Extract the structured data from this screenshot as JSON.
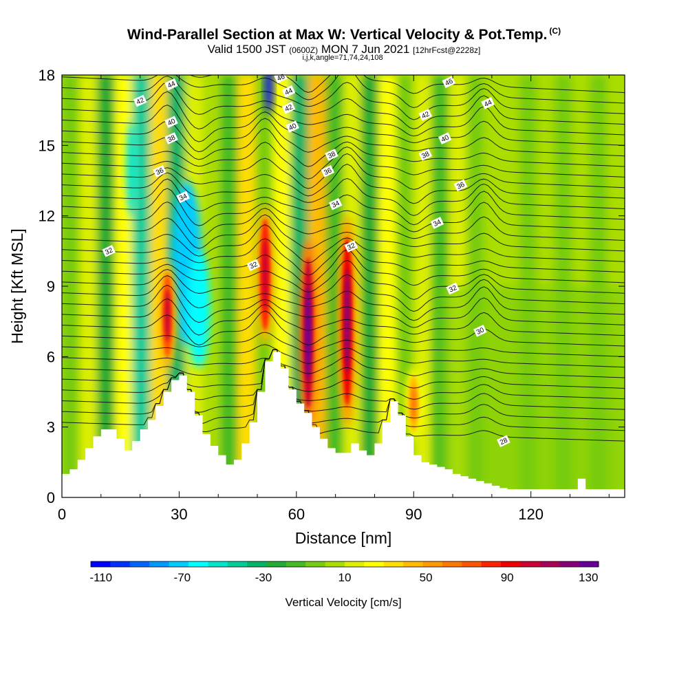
{
  "header": {
    "title": "Wind-Parallel Section at Max W: Vertical Velocity & Pot.Temp.",
    "copyright": "(C)",
    "valid_prefix": "Valid 1500 JST",
    "valid_utc": "(0600Z)",
    "valid_date": "MON 7 Jun 2021",
    "forecast": "[12hrFcst@2228z]",
    "indices": "i,j,k,angle=71,74,24,108"
  },
  "chart_data": {
    "type": "heatmap",
    "xlabel": "Distance [nm]",
    "ylabel": "Height [Kft MSL]",
    "xlim": [
      0,
      144
    ],
    "ylim": [
      0,
      18
    ],
    "xticks": [
      0,
      30,
      60,
      90,
      120
    ],
    "yticks": [
      0,
      3,
      6,
      9,
      12,
      15,
      18
    ],
    "colorbar": {
      "label": "Vertical Velocity [cm/s]",
      "range": [
        -115,
        135
      ],
      "tick_values": [
        -110,
        -70,
        -30,
        10,
        50,
        90,
        130
      ],
      "colors": [
        "#0000ff",
        "#0033ff",
        "#0066ff",
        "#0099ff",
        "#00ccff",
        "#00ffff",
        "#00e5cc",
        "#00cc99",
        "#00b366",
        "#22aa33",
        "#44bb22",
        "#77cc11",
        "#aadd00",
        "#ddee00",
        "#ffff00",
        "#ffdd00",
        "#ffbb00",
        "#ff9900",
        "#ff7700",
        "#ff5500",
        "#ff2200",
        "#ee0000",
        "#cc0033",
        "#aa0055",
        "#880077",
        "#660099"
      ]
    },
    "terrain_profile": {
      "x": [
        0,
        2,
        4,
        6,
        8,
        10,
        12,
        14,
        16,
        18,
        20,
        22,
        24,
        26,
        28,
        30,
        32,
        34,
        36,
        38,
        40,
        42,
        44,
        46,
        48,
        50,
        52,
        54,
        56,
        58,
        60,
        62,
        64,
        66,
        68,
        70,
        72,
        74,
        76,
        78,
        80,
        82,
        84,
        86,
        88,
        90,
        92,
        94,
        96,
        98,
        100,
        102,
        104,
        106,
        108,
        110,
        112,
        114,
        116,
        118,
        120,
        122,
        124,
        126,
        128,
        130,
        132,
        134,
        136,
        138,
        140,
        142,
        144
      ],
      "height": [
        1.0,
        1.2,
        1.6,
        2.1,
        2.6,
        2.9,
        2.9,
        2.5,
        2.0,
        2.4,
        2.9,
        3.3,
        3.9,
        4.5,
        5.0,
        5.2,
        4.5,
        3.5,
        2.7,
        2.2,
        1.8,
        1.4,
        1.6,
        2.3,
        3.2,
        4.5,
        5.8,
        6.2,
        5.5,
        4.6,
        4.0,
        3.6,
        3.0,
        2.5,
        2.1,
        1.9,
        1.9,
        2.3,
        2.0,
        1.8,
        2.3,
        3.2,
        4.1,
        3.5,
        2.6,
        1.8,
        1.5,
        1.4,
        1.3,
        1.2,
        1.0,
        0.9,
        0.8,
        0.7,
        0.6,
        0.5,
        0.4,
        0.35,
        0.35,
        0.35,
        0.35,
        0.35,
        0.35,
        0.35,
        0.35,
        0.35,
        0.8,
        0.35,
        0.35,
        0.35,
        0.35,
        0.35,
        0.35
      ]
    },
    "updraft_features": [
      {
        "x": 27,
        "height_min": 5.5,
        "height_max": 10.0,
        "peak": 100
      },
      {
        "x": 52,
        "height_min": 6.5,
        "height_max": 12.5,
        "peak": 105
      },
      {
        "x": 63,
        "height_min": 3.0,
        "height_max": 11.0,
        "peak": 130
      },
      {
        "x": 73,
        "height_min": 3.0,
        "height_max": 12.0,
        "peak": 125
      },
      {
        "x": 90,
        "height_min": 2.5,
        "height_max": 5.5,
        "peak": 60
      }
    ],
    "theta_contours": [
      {
        "label": "28",
        "y_left": 3.0,
        "y_right": 2.4,
        "label_x": 113,
        "label_y": 2.4
      },
      {
        "label": "30",
        "y_left": 7.3,
        "y_right": 5.0,
        "label_x": 107,
        "label_y": 7.1
      },
      {
        "label": "32",
        "y_left": 10.1,
        "y_right": 8.4,
        "label_x": 12,
        "label_y": 10.5
      },
      {
        "label": "32",
        "label_x": 49,
        "label_y": 9.9
      },
      {
        "label": "32",
        "label_x": 74,
        "label_y": 10.7
      },
      {
        "label": "32",
        "label_x": 100,
        "label_y": 8.9
      },
      {
        "label": "34",
        "y_left": 12.0,
        "y_right": 11.0,
        "label_x": 31,
        "label_y": 12.8
      },
      {
        "label": "34",
        "label_x": 70,
        "label_y": 12.5
      },
      {
        "label": "34",
        "label_x": 96,
        "label_y": 11.7
      },
      {
        "label": "36",
        "y_left": 13.5,
        "y_right": 12.6,
        "label_x": 25,
        "label_y": 13.9
      },
      {
        "label": "36",
        "label_x": 68,
        "label_y": 13.9
      },
      {
        "label": "36",
        "label_x": 102,
        "label_y": 13.3
      },
      {
        "label": "38",
        "y_left": 15.0,
        "y_right": 14.3,
        "label_x": 28,
        "label_y": 15.3
      },
      {
        "label": "38",
        "label_x": 69,
        "label_y": 14.6
      },
      {
        "label": "38",
        "label_x": 93,
        "label_y": 14.6
      },
      {
        "label": "40",
        "y_left": 15.7,
        "y_right": 15.3,
        "label_x": 28,
        "label_y": 16.0
      },
      {
        "label": "40",
        "label_x": 59,
        "label_y": 15.8
      },
      {
        "label": "40",
        "label_x": 98,
        "label_y": 15.3
      },
      {
        "label": "42",
        "y_left": 16.6,
        "y_right": 16.0,
        "label_x": 20,
        "label_y": 16.9
      },
      {
        "label": "42",
        "label_x": 58,
        "label_y": 16.6
      },
      {
        "label": "42",
        "label_x": 93,
        "label_y": 16.3
      },
      {
        "label": "44",
        "y_left": 17.4,
        "y_right": 16.9,
        "label_x": 28,
        "label_y": 17.6
      },
      {
        "label": "44",
        "label_x": 58,
        "label_y": 17.3
      },
      {
        "label": "44",
        "label_x": 109,
        "label_y": 16.8
      },
      {
        "label": "46",
        "y_left": 18.0,
        "y_right": 17.7,
        "label_x": 56,
        "label_y": 17.9
      },
      {
        "label": "46",
        "label_x": 99,
        "label_y": 17.7
      }
    ]
  }
}
